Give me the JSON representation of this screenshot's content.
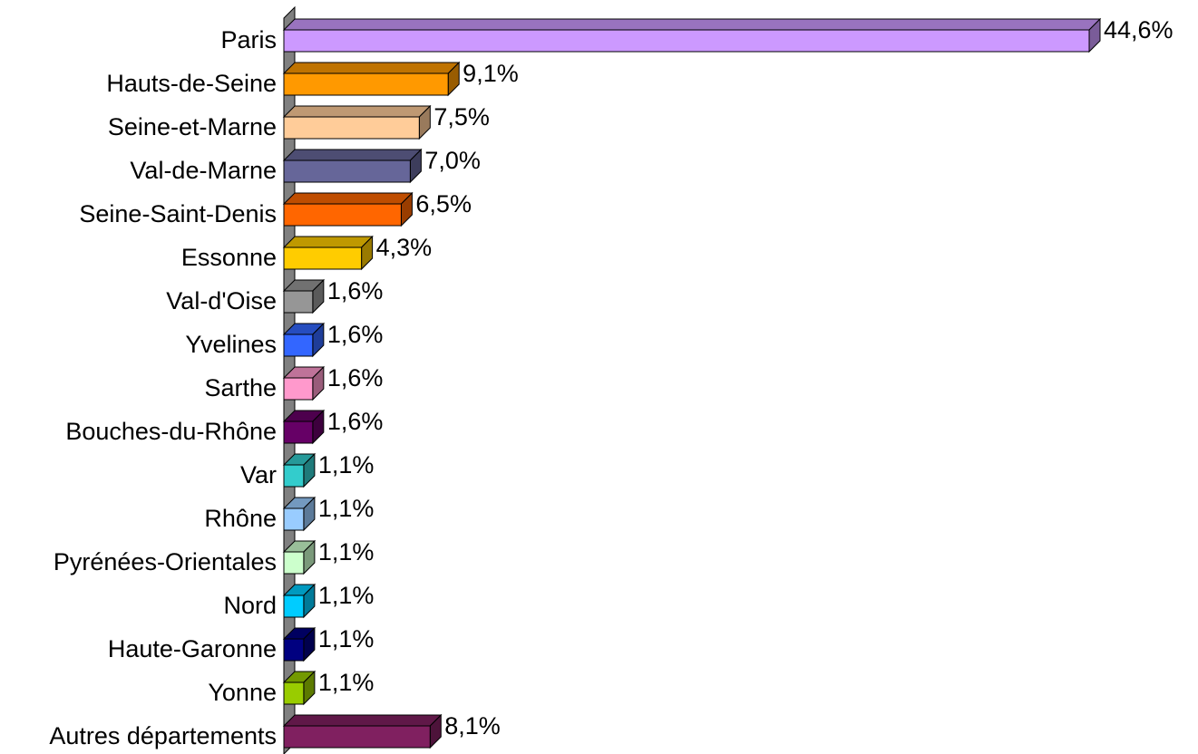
{
  "chart_data": {
    "type": "bar",
    "orientation": "horizontal",
    "categories": [
      "Paris",
      "Hauts-de-Seine",
      "Seine-et-Marne",
      "Val-de-Marne",
      "Seine-Saint-Denis",
      "Essonne",
      "Val-d'Oise",
      "Yvelines",
      "Sarthe",
      "Bouches-du-Rhône",
      "Var",
      "Rhône",
      "Pyrénées-Orientales",
      "Nord",
      "Haute-Garonne",
      "Yonne",
      "Autres départements"
    ],
    "values": [
      44.6,
      9.1,
      7.5,
      7.0,
      6.5,
      4.3,
      1.6,
      1.6,
      1.6,
      1.6,
      1.1,
      1.1,
      1.1,
      1.1,
      1.1,
      1.1,
      8.1
    ],
    "value_labels": [
      "44,6%",
      "9,1%",
      "7,5%",
      "7,0%",
      "6,5%",
      "4,3%",
      "1,6%",
      "1,6%",
      "1,6%",
      "1,6%",
      "1,1%",
      "1,1%",
      "1,1%",
      "1,1%",
      "1,1%",
      "1,1%",
      "8,1%"
    ],
    "colors": [
      "#cc99ff",
      "#ff9900",
      "#ffcc99",
      "#666699",
      "#ff6600",
      "#ffcc00",
      "#969696",
      "#3366ff",
      "#ff99cc",
      "#660066",
      "#33cccc",
      "#99ccff",
      "#ccffcc",
      "#00ccff",
      "#000080",
      "#99cc00",
      "#802060"
    ]
  }
}
